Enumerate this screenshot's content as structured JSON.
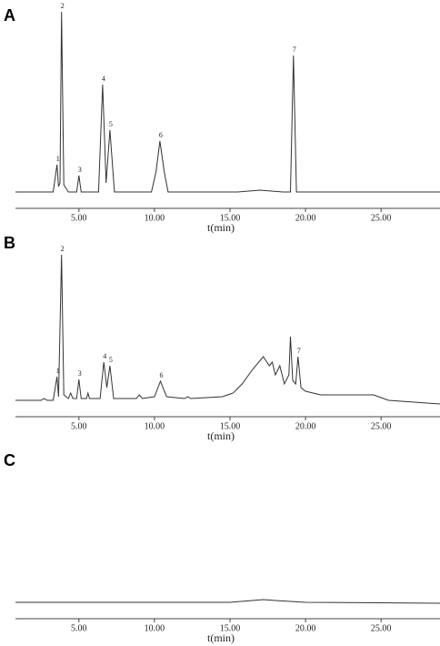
{
  "chart_data": [
    {
      "type": "line",
      "title": "A",
      "xlabel": "t(min)",
      "xlim": [
        0.8,
        28.9
      ],
      "ylim": [
        -2,
        100
      ],
      "xticks": [
        {
          "value": 5,
          "label": "5.00"
        },
        {
          "value": 10,
          "label": "10.00"
        },
        {
          "value": 15,
          "label": "15.00"
        },
        {
          "value": 20,
          "label": "20.00"
        },
        {
          "value": 25,
          "label": "25.00"
        }
      ],
      "series": [
        {
          "color": "#333333",
          "x": [
            0.8,
            3.3,
            3.55,
            3.65,
            3.75,
            3.85,
            4.0,
            4.3,
            4.85,
            5.0,
            5.15,
            6.3,
            6.57,
            6.8,
            7.05,
            7.35,
            9.8,
            10.1,
            10.36,
            10.65,
            10.9,
            15.5,
            17,
            18.5,
            19.0,
            19.2,
            19.4,
            28.9
          ],
          "values": [
            1,
            1,
            16,
            4,
            6,
            100,
            5,
            1,
            1,
            10,
            1,
            1,
            60,
            6,
            35,
            1,
            1,
            12,
            29,
            12,
            1,
            1,
            2,
            1,
            1,
            76,
            1,
            1
          ]
        }
      ],
      "annotations": [
        {
          "text": "1",
          "x": 3.55,
          "y": 16
        },
        {
          "text": "2",
          "x": 3.85,
          "y": 100
        },
        {
          "text": "3",
          "x": 5.0,
          "y": 10
        },
        {
          "text": "4",
          "x": 6.57,
          "y": 60
        },
        {
          "text": "5",
          "x": 7.05,
          "y": 35
        },
        {
          "text": "6",
          "x": 10.36,
          "y": 29
        },
        {
          "text": "7",
          "x": 19.2,
          "y": 76
        }
      ]
    },
    {
      "type": "line",
      "title": "B",
      "xlabel": "t(min)",
      "xlim": [
        0.8,
        28.9
      ],
      "ylim": [
        -2,
        100
      ],
      "xticks": [
        {
          "value": 5,
          "label": "5.00"
        },
        {
          "value": 10,
          "label": "10.00"
        },
        {
          "value": 15,
          "label": "15.00"
        },
        {
          "value": 20,
          "label": "20.00"
        },
        {
          "value": 25,
          "label": "25.00"
        }
      ],
      "series": [
        {
          "color": "#333333",
          "x": [
            0.8,
            2.5,
            2.7,
            2.9,
            3.3,
            3.55,
            3.65,
            3.85,
            4.0,
            4.3,
            4.45,
            4.6,
            4.85,
            5.0,
            5.15,
            5.5,
            5.6,
            5.7,
            6.4,
            6.65,
            6.85,
            7.05,
            7.3,
            8.8,
            9.0,
            9.2,
            10.0,
            10.4,
            10.8,
            12.0,
            12.2,
            12.4,
            14.5,
            15.2,
            15.8,
            16.5,
            17.2,
            17.6,
            17.8,
            18.0,
            18.3,
            18.6,
            18.9,
            19.0,
            19.15,
            19.35,
            19.5,
            19.7,
            20.0,
            21,
            24.5,
            25.5,
            28.9
          ],
          "values": [
            1,
            1,
            2,
            1,
            1,
            14,
            3,
            81,
            4,
            2,
            5,
            2,
            2,
            12.5,
            2,
            2,
            5,
            2,
            2,
            22,
            8,
            20,
            2,
            2,
            4,
            2,
            3,
            11.5,
            3,
            2,
            3,
            2,
            3,
            5,
            10,
            18,
            25,
            20,
            22,
            15,
            20,
            10,
            15,
            36,
            12,
            10,
            25,
            8,
            6,
            4,
            4,
            1,
            -1
          ]
        }
      ],
      "annotations": [
        {
          "text": "1",
          "x": 3.55,
          "y": 14
        },
        {
          "text": "2",
          "x": 3.85,
          "y": 81
        },
        {
          "text": "3",
          "x": 5.0,
          "y": 12.5
        },
        {
          "text": "4",
          "x": 6.65,
          "y": 22
        },
        {
          "text": "5",
          "x": 7.05,
          "y": 20
        },
        {
          "text": "6",
          "x": 10.4,
          "y": 11.5
        },
        {
          "text": "7",
          "x": 19.5,
          "y": 25
        }
      ]
    },
    {
      "type": "line",
      "title": "C",
      "xlabel": "t(min)",
      "xlim": [
        0.8,
        28.9
      ],
      "ylim": [
        -2,
        100
      ],
      "xticks": [
        {
          "value": 5,
          "label": "5.00"
        },
        {
          "value": 10,
          "label": "10.00"
        },
        {
          "value": 15,
          "label": "15.00"
        },
        {
          "value": 20,
          "label": "20.00"
        },
        {
          "value": 25,
          "label": "25.00"
        }
      ],
      "series": [
        {
          "color": "#333333",
          "x": [
            0.8,
            15,
            16.5,
            17.2,
            18,
            20,
            28.9
          ],
          "values": [
            1,
            1,
            2,
            2.5,
            2,
            1,
            0.5
          ]
        }
      ]
    }
  ]
}
